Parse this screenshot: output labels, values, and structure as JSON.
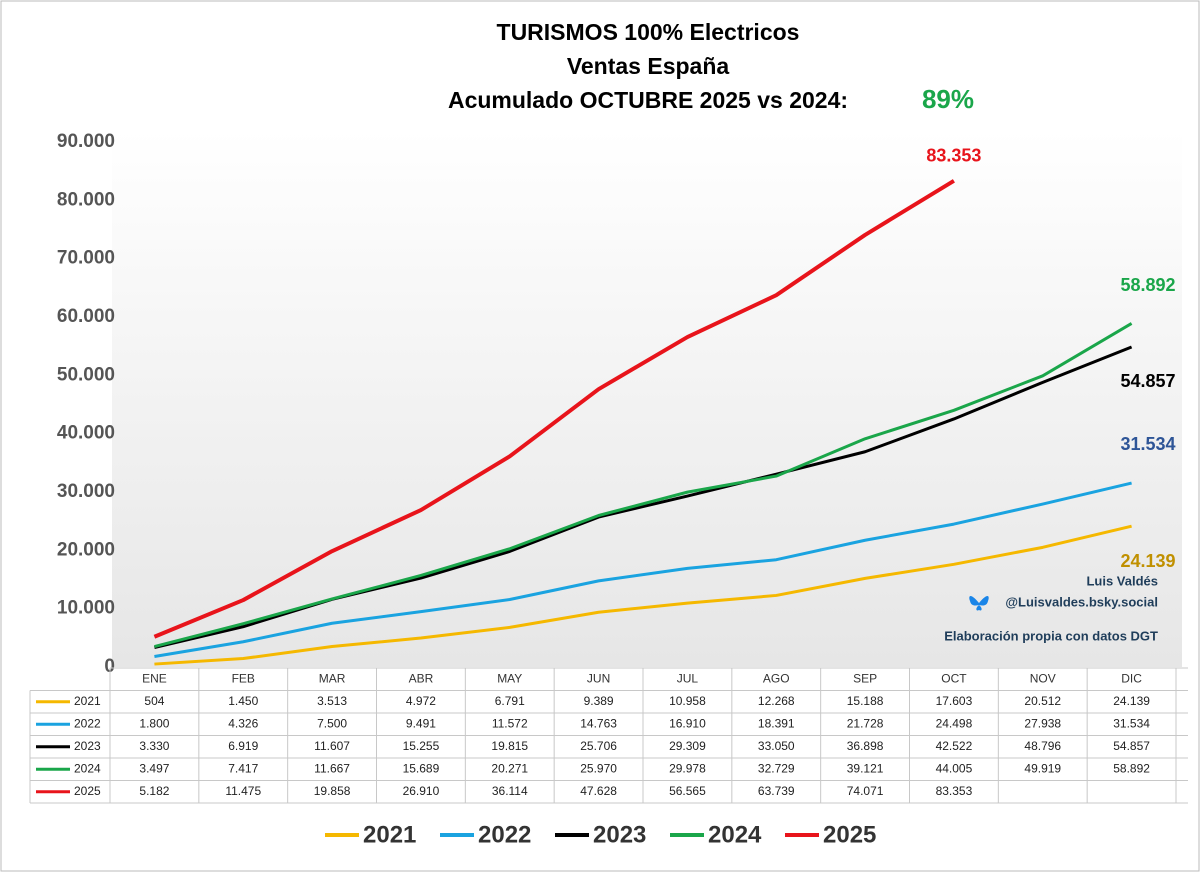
{
  "chart_data": {
    "type": "line",
    "title": [
      "TURISMOS 100% Electricos",
      "Ventas  España",
      "Acumulado OCTUBRE 2025 vs 2024:"
    ],
    "annotation": {
      "text": "89%",
      "color": "#1aa64a"
    },
    "credits": [
      "Luis Valdés",
      "@Luisvaldes.bsky.social",
      "Elaboración propia con datos DGT"
    ],
    "categories": [
      "ENE",
      "FEB",
      "MAR",
      "ABR",
      "MAY",
      "JUN",
      "JUL",
      "AGO",
      "SEP",
      "OCT",
      "NOV",
      "DIC"
    ],
    "ylim": [
      0,
      90000
    ],
    "yticks": [
      {
        "value": 0,
        "label": "0"
      },
      {
        "value": 10000,
        "label": "10.000"
      },
      {
        "value": 20000,
        "label": "20.000"
      },
      {
        "value": 30000,
        "label": "30.000"
      },
      {
        "value": 40000,
        "label": "40.000"
      },
      {
        "value": 50000,
        "label": "50.000"
      },
      {
        "value": 60000,
        "label": "60.000"
      },
      {
        "value": 70000,
        "label": "70.000"
      },
      {
        "value": 80000,
        "label": "80.000"
      },
      {
        "value": 90000,
        "label": "90.000"
      }
    ],
    "series": [
      {
        "name": "2021",
        "color": "#f5b800",
        "label_color": "#c09000",
        "values": [
          504,
          1450,
          3513,
          4972,
          6791,
          9389,
          10958,
          12268,
          15188,
          17603,
          20512,
          24139
        ],
        "value_labels": [
          "504",
          "1.450",
          "3.513",
          "4.972",
          "6.791",
          "9.389",
          "10.958",
          "12.268",
          "15.188",
          "17.603",
          "20.512",
          "24.139"
        ]
      },
      {
        "name": "2022",
        "color": "#1aa3e0",
        "label_color": "#2e5597",
        "values": [
          1800,
          4326,
          7500,
          9491,
          11572,
          14763,
          16910,
          18391,
          21728,
          24498,
          27938,
          31534
        ],
        "value_labels": [
          "1.800",
          "4.326",
          "7.500",
          "9.491",
          "11.572",
          "14.763",
          "16.910",
          "18.391",
          "21.728",
          "24.498",
          "27.938",
          "31.534"
        ]
      },
      {
        "name": "2023",
        "color": "#000000",
        "label_color": "#000000",
        "values": [
          3330,
          6919,
          11607,
          15255,
          19815,
          25706,
          29309,
          33050,
          36898,
          42522,
          48796,
          54857
        ],
        "value_labels": [
          "3.330",
          "6.919",
          "11.607",
          "15.255",
          "19.815",
          "25.706",
          "29.309",
          "33.050",
          "36.898",
          "42.522",
          "48.796",
          "54.857"
        ]
      },
      {
        "name": "2024",
        "color": "#1aa64a",
        "label_color": "#1aa64a",
        "values": [
          3497,
          7417,
          11667,
          15689,
          20271,
          25970,
          29978,
          32729,
          39121,
          44005,
          49919,
          58892
        ],
        "value_labels": [
          "3.497",
          "7.417",
          "11.667",
          "15.689",
          "20.271",
          "25.970",
          "29.978",
          "32.729",
          "39.121",
          "44.005",
          "49.919",
          "58.892"
        ]
      },
      {
        "name": "2025",
        "color": "#e8141b",
        "label_color": "#e8141b",
        "values": [
          5182,
          11475,
          19858,
          26910,
          36114,
          47628,
          56565,
          63739,
          74071,
          83353,
          null,
          null
        ],
        "value_labels": [
          "5.182",
          "11.475",
          "19.858",
          "26.910",
          "36.114",
          "47.628",
          "56.565",
          "63.739",
          "74.071",
          "83.353",
          null,
          null
        ]
      }
    ]
  }
}
